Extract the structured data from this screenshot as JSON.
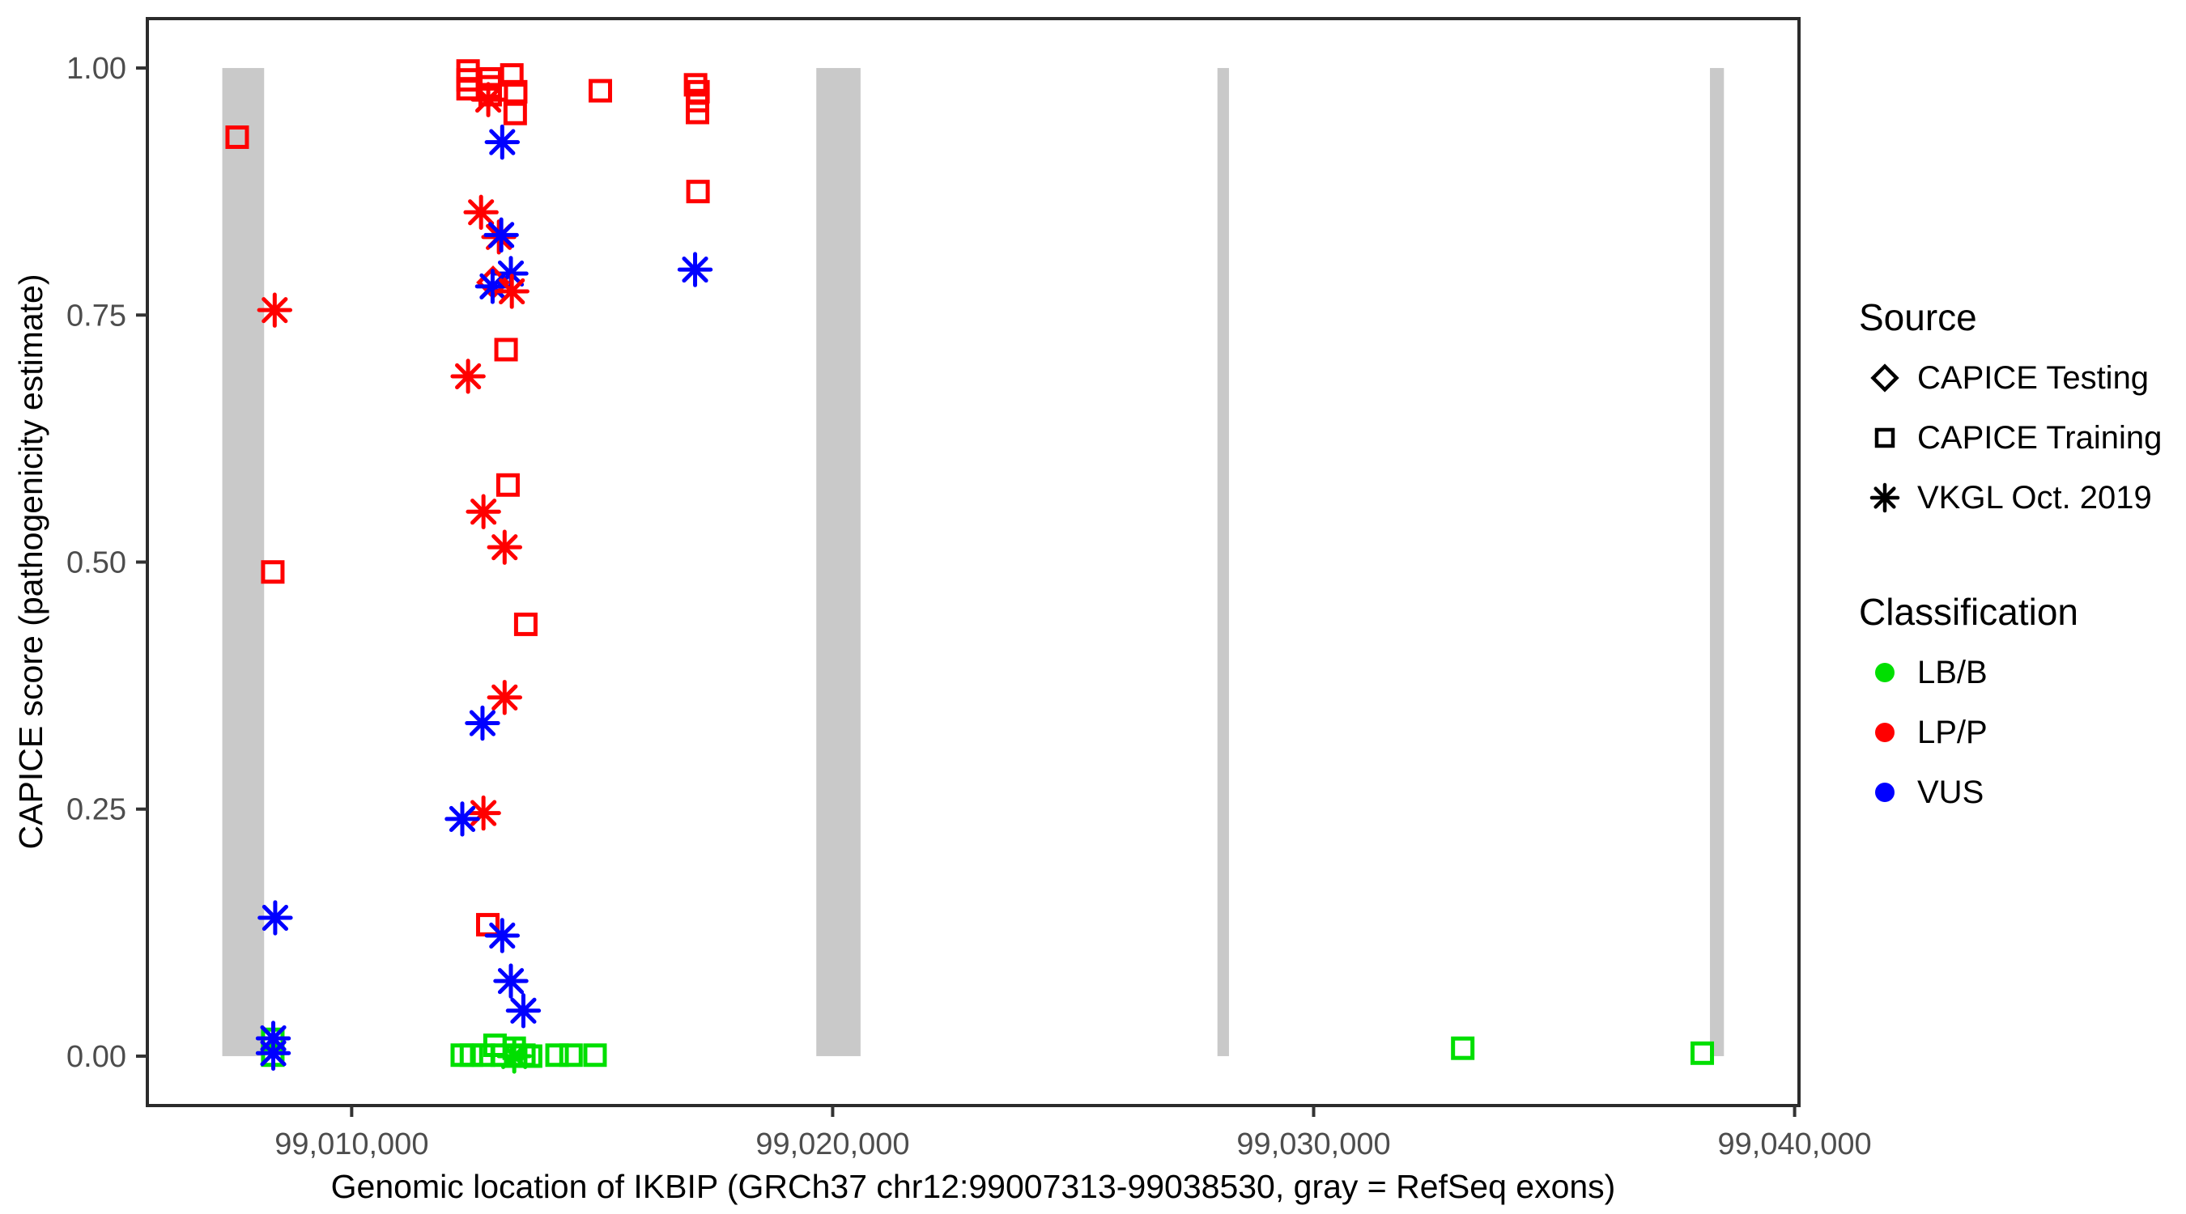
{
  "figure": {
    "x_axis_title": "Genomic location of IKBIP (GRCh37 chr12:99007313-99038530, gray = RefSeq exons)",
    "y_axis_title": "CAPICE score (pathogenicity estimate)"
  },
  "legend": {
    "source": {
      "title": "Source",
      "items": [
        {
          "label": "CAPICE Testing",
          "shape": "diamond"
        },
        {
          "label": "CAPICE Training",
          "shape": "square"
        },
        {
          "label": "VKGL Oct. 2019",
          "shape": "asterisk"
        }
      ]
    },
    "classification": {
      "title": "Classification",
      "items": [
        {
          "label": "LB/B",
          "color": "#00DF00"
        },
        {
          "label": "LP/P",
          "color": "#FF0000"
        },
        {
          "label": "VUS",
          "color": "#0000FF"
        }
      ]
    }
  },
  "chart_data": {
    "type": "scatter",
    "xlabel": "Genomic location of IKBIP (GRCh37 chr12:99007313-99038530, gray = RefSeq exons)",
    "ylabel": "CAPICE score (pathogenicity estimate)",
    "xlim": [
      99005752,
      99040091
    ],
    "ylim": [
      -0.05,
      1.05
    ],
    "x_ticks": [
      {
        "value": 99010000,
        "label": "99,010,000"
      },
      {
        "value": 99020000,
        "label": "99,020,000"
      },
      {
        "value": 99030000,
        "label": "99,030,000"
      },
      {
        "value": 99040000,
        "label": "99,040,000"
      }
    ],
    "y_ticks": [
      {
        "value": 0.0,
        "label": "0.00"
      },
      {
        "value": 0.25,
        "label": "0.25"
      },
      {
        "value": 0.5,
        "label": "0.50"
      },
      {
        "value": 0.75,
        "label": "0.75"
      },
      {
        "value": 1.0,
        "label": "1.00"
      }
    ],
    "exon_color": "#C9C9C9",
    "exons": [
      {
        "start": 99007310,
        "end": 99008180
      },
      {
        "start": 99019660,
        "end": 99020580
      },
      {
        "start": 99028000,
        "end": 99028240
      },
      {
        "start": 99038240,
        "end": 99038530
      }
    ],
    "classification_colors": {
      "LB/B": "#00DF00",
      "LP/P": "#FF0000",
      "VUS": "#0000FF"
    },
    "source_shapes": {
      "CAPICE Testing": "diamond",
      "CAPICE Training": "square",
      "VKGL Oct. 2019": "asterisk"
    },
    "points": [
      {
        "x": 99007620,
        "y": 0.93,
        "source": "CAPICE Training",
        "classification": "LP/P"
      },
      {
        "x": 99008400,
        "y": 0.755,
        "source": "VKGL Oct. 2019",
        "classification": "LP/P"
      },
      {
        "x": 99008360,
        "y": 0.49,
        "source": "CAPICE Training",
        "classification": "LP/P"
      },
      {
        "x": 99008410,
        "y": 0.14,
        "source": "VKGL Oct. 2019",
        "classification": "VUS"
      },
      {
        "x": 99008360,
        "y": 0.017,
        "source": "CAPICE Training",
        "classification": "LB/B"
      },
      {
        "x": 99008360,
        "y": 0.001,
        "source": "CAPICE Training",
        "classification": "LB/B"
      },
      {
        "x": 99008370,
        "y": 0.018,
        "source": "VKGL Oct. 2019",
        "classification": "VUS"
      },
      {
        "x": 99008370,
        "y": 0.003,
        "source": "VKGL Oct. 2019",
        "classification": "VUS"
      },
      {
        "x": 99012420,
        "y": 0.997,
        "source": "CAPICE Training",
        "classification": "LP/P"
      },
      {
        "x": 99012420,
        "y": 0.988,
        "source": "CAPICE Training",
        "classification": "LP/P"
      },
      {
        "x": 99012420,
        "y": 0.979,
        "source": "CAPICE Training",
        "classification": "LP/P"
      },
      {
        "x": 99012880,
        "y": 0.989,
        "source": "CAPICE Training",
        "classification": "LP/P"
      },
      {
        "x": 99012880,
        "y": 0.981,
        "source": "CAPICE Training",
        "classification": "LP/P"
      },
      {
        "x": 99012880,
        "y": 0.973,
        "source": "CAPICE Training",
        "classification": "LP/P"
      },
      {
        "x": 99012840,
        "y": 0.968,
        "source": "VKGL Oct. 2019",
        "classification": "LP/P"
      },
      {
        "x": 99013330,
        "y": 0.993,
        "source": "CAPICE Training",
        "classification": "LP/P"
      },
      {
        "x": 99013410,
        "y": 0.976,
        "source": "CAPICE Training",
        "classification": "LP/P"
      },
      {
        "x": 99013400,
        "y": 0.954,
        "source": "CAPICE Training",
        "classification": "LP/P"
      },
      {
        "x": 99013130,
        "y": 0.925,
        "source": "VKGL Oct. 2019",
        "classification": "VUS"
      },
      {
        "x": 99015170,
        "y": 0.977,
        "source": "CAPICE Training",
        "classification": "LP/P"
      },
      {
        "x": 99017150,
        "y": 0.983,
        "source": "CAPICE Training",
        "classification": "LP/P"
      },
      {
        "x": 99017200,
        "y": 0.976,
        "source": "CAPICE Training",
        "classification": "LP/P"
      },
      {
        "x": 99017190,
        "y": 0.967,
        "source": "CAPICE Training",
        "classification": "LP/P"
      },
      {
        "x": 99017190,
        "y": 0.955,
        "source": "CAPICE Training",
        "classification": "LP/P"
      },
      {
        "x": 99017200,
        "y": 0.875,
        "source": "CAPICE Training",
        "classification": "LP/P"
      },
      {
        "x": 99017140,
        "y": 0.796,
        "source": "VKGL Oct. 2019",
        "classification": "VUS"
      },
      {
        "x": 99012690,
        "y": 0.854,
        "source": "VKGL Oct. 2019",
        "classification": "LP/P"
      },
      {
        "x": 99013060,
        "y": 0.829,
        "source": "VKGL Oct. 2019",
        "classification": "LP/P"
      },
      {
        "x": 99013110,
        "y": 0.831,
        "source": "VKGL Oct. 2019",
        "classification": "VUS"
      },
      {
        "x": 99013310,
        "y": 0.792,
        "source": "VKGL Oct. 2019",
        "classification": "VUS"
      },
      {
        "x": 99012940,
        "y": 0.783,
        "source": "CAPICE Testing",
        "classification": "LP/P"
      },
      {
        "x": 99012930,
        "y": 0.779,
        "source": "VKGL Oct. 2019",
        "classification": "VUS"
      },
      {
        "x": 99013330,
        "y": 0.774,
        "source": "VKGL Oct. 2019",
        "classification": "LP/P"
      },
      {
        "x": 99013210,
        "y": 0.715,
        "source": "CAPICE Training",
        "classification": "LP/P"
      },
      {
        "x": 99012420,
        "y": 0.688,
        "source": "VKGL Oct. 2019",
        "classification": "LP/P"
      },
      {
        "x": 99013250,
        "y": 0.578,
        "source": "CAPICE Training",
        "classification": "LP/P"
      },
      {
        "x": 99012740,
        "y": 0.551,
        "source": "VKGL Oct. 2019",
        "classification": "LP/P"
      },
      {
        "x": 99013180,
        "y": 0.515,
        "source": "VKGL Oct. 2019",
        "classification": "LP/P"
      },
      {
        "x": 99013620,
        "y": 0.437,
        "source": "CAPICE Training",
        "classification": "LP/P"
      },
      {
        "x": 99013180,
        "y": 0.363,
        "source": "VKGL Oct. 2019",
        "classification": "LP/P"
      },
      {
        "x": 99012720,
        "y": 0.337,
        "source": "VKGL Oct. 2019",
        "classification": "VUS"
      },
      {
        "x": 99012740,
        "y": 0.246,
        "source": "VKGL Oct. 2019",
        "classification": "LP/P"
      },
      {
        "x": 99012300,
        "y": 0.24,
        "source": "VKGL Oct. 2019",
        "classification": "VUS"
      },
      {
        "x": 99012830,
        "y": 0.133,
        "source": "CAPICE Training",
        "classification": "LP/P"
      },
      {
        "x": 99013130,
        "y": 0.122,
        "source": "VKGL Oct. 2019",
        "classification": "VUS"
      },
      {
        "x": 99013310,
        "y": 0.076,
        "source": "VKGL Oct. 2019",
        "classification": "VUS"
      },
      {
        "x": 99013570,
        "y": 0.046,
        "source": "VKGL Oct. 2019",
        "classification": "VUS"
      },
      {
        "x": 99012300,
        "y": 0.001,
        "source": "CAPICE Training",
        "classification": "LB/B"
      },
      {
        "x": 99012490,
        "y": 0.001,
        "source": "CAPICE Training",
        "classification": "LB/B"
      },
      {
        "x": 99012740,
        "y": 0.001,
        "source": "CAPICE Training",
        "classification": "LB/B"
      },
      {
        "x": 99012980,
        "y": 0.011,
        "source": "CAPICE Training",
        "classification": "LB/B"
      },
      {
        "x": 99013130,
        "y": 0.001,
        "source": "CAPICE Training",
        "classification": "LB/B"
      },
      {
        "x": 99013380,
        "y": 0.008,
        "source": "CAPICE Training",
        "classification": "LB/B"
      },
      {
        "x": 99013410,
        "y": 0.0,
        "source": "CAPICE Training",
        "classification": "LB/B"
      },
      {
        "x": 99013580,
        "y": 0.001,
        "source": "CAPICE Training",
        "classification": "LB/B"
      },
      {
        "x": 99013720,
        "y": 0.0,
        "source": "CAPICE Training",
        "classification": "LB/B"
      },
      {
        "x": 99013380,
        "y": 0.0,
        "source": "VKGL Oct. 2019",
        "classification": "LB/B"
      },
      {
        "x": 99014270,
        "y": 0.001,
        "source": "CAPICE Training",
        "classification": "LB/B"
      },
      {
        "x": 99014560,
        "y": 0.001,
        "source": "CAPICE Training",
        "classification": "LB/B"
      },
      {
        "x": 99015060,
        "y": 0.001,
        "source": "CAPICE Training",
        "classification": "LB/B"
      },
      {
        "x": 99033100,
        "y": 0.008,
        "source": "CAPICE Training",
        "classification": "LB/B"
      },
      {
        "x": 99038080,
        "y": 0.003,
        "source": "CAPICE Training",
        "classification": "LB/B"
      }
    ]
  }
}
